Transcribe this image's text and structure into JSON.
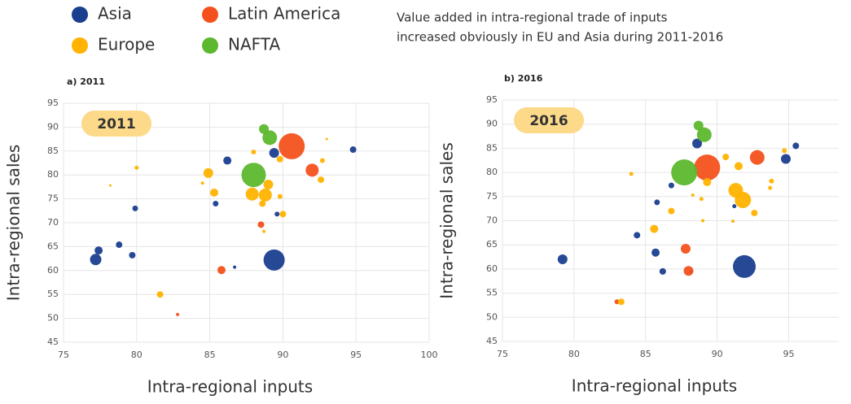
{
  "note": [
    "Value added in intra-regional trade of inputs",
    "increased obviously in EU and Asia during 2011-2016"
  ],
  "chart_data": [
    {
      "type": "scatter",
      "title": "a) 2011",
      "annotation": "2011",
      "x_label": "Intra-regional inputs",
      "y_label": "Intra-regional sales",
      "xlim": [
        75,
        100
      ],
      "ylim": [
        45,
        95
      ],
      "xticks": [
        75,
        80,
        85,
        90,
        95,
        100
      ],
      "yticks": [
        45,
        50,
        55,
        60,
        65,
        70,
        75,
        80,
        85,
        90,
        95
      ],
      "grid": true,
      "series": [
        {
          "name": "Asia",
          "color": "#1b3f8f",
          "x": [
            77.2,
            77.4,
            78.8,
            79.7,
            79.9,
            85.4,
            86.2,
            86.7,
            89.4,
            89.4,
            89.6,
            94.8
          ],
          "values": [
            62.3,
            64.2,
            65.4,
            63.2,
            73,
            74,
            83,
            60.7,
            62.2,
            84.6,
            71.8,
            85.3
          ],
          "sizes": [
            7,
            5,
            4,
            4,
            3.5,
            3.5,
            5,
            2,
            13,
            6,
            3,
            4
          ]
        },
        {
          "name": "Latin America",
          "color": "#f4511e",
          "x": [
            90.6,
            92,
            85.8,
            88.5,
            82.8
          ],
          "values": [
            86,
            81,
            60.1,
            69.6,
            50.8
          ],
          "sizes": [
            16,
            8,
            5,
            4,
            2
          ]
        },
        {
          "name": "Europe",
          "color": "#ffb300",
          "x": [
            81.6,
            80,
            78.2,
            84.9,
            85.3,
            87.9,
            88.8,
            89,
            88.6,
            90,
            89.8,
            92.6,
            92.7,
            89.8,
            88,
            84.5,
            93,
            88.7
          ],
          "values": [
            55,
            81.5,
            77.8,
            80.4,
            76.3,
            76,
            75.8,
            78,
            74,
            71.8,
            75.5,
            79,
            83,
            83.3,
            84.8,
            78.3,
            87.5,
            68.2
          ],
          "sizes": [
            4,
            2.5,
            1.5,
            6,
            5,
            8,
            8,
            6,
            4,
            4,
            3,
            4,
            3,
            4,
            3,
            2,
            1.5,
            2
          ]
        },
        {
          "name": "NAFTA",
          "color": "#5cb82e",
          "x": [
            88,
            88.7,
            89.1
          ],
          "values": [
            80,
            89.6,
            87.8
          ],
          "sizes": [
            15,
            6,
            9
          ]
        }
      ]
    },
    {
      "type": "scatter",
      "title": "b) 2016",
      "annotation": "2016",
      "x_label": "Intra-regional inputs",
      "y_label": "Intra-regional sales",
      "xlim": [
        75,
        98.5
      ],
      "ylim": [
        45,
        95
      ],
      "xticks": [
        75,
        80,
        85,
        90,
        95
      ],
      "yticks": [
        45,
        50,
        55,
        60,
        65,
        70,
        75,
        80,
        85,
        90,
        95
      ],
      "grid": true,
      "series": [
        {
          "color": "#1b3f8f",
          "x": [
            79.2,
            84.4,
            85.7,
            85.8,
            86.2,
            86.8,
            88.6,
            91.2,
            91.9,
            94.8,
            95.5,
            88.2
          ],
          "values": [
            62,
            67,
            63.4,
            73.8,
            59.5,
            77.3,
            86,
            73,
            60.5,
            82.8,
            85.5,
            59.5
          ],
          "sizes": [
            6,
            4,
            5,
            3.5,
            4,
            3.5,
            6,
            2.5,
            14,
            6,
            4,
            2
          ]
        },
        {
          "color": "#f4511e",
          "x": [
            89.3,
            92.8,
            87.8,
            88,
            83
          ],
          "values": [
            81,
            83.1,
            64.2,
            59.6,
            53.2
          ],
          "sizes": [
            16,
            9,
            6,
            6,
            3
          ]
        },
        {
          "color": "#ffb300",
          "x": [
            83.3,
            84,
            85.6,
            86.8,
            89.3,
            90.6,
            91.3,
            91.8,
            91.5,
            92.6,
            93.8,
            94.7,
            93.7,
            88.9,
            89,
            91.1,
            88.3
          ],
          "values": [
            53.2,
            79.7,
            68.3,
            72,
            78,
            83.2,
            76.3,
            74.3,
            81.3,
            71.6,
            78.2,
            84.5,
            76.8,
            74.5,
            70,
            69.9,
            75.3
          ],
          "sizes": [
            4,
            2.5,
            5,
            4,
            5,
            4,
            9,
            10,
            5,
            4,
            3,
            3,
            2.5,
            2.5,
            2,
            2,
            2
          ]
        },
        {
          "color": "#5cb82e",
          "x": [
            87.7,
            88.7,
            89.1
          ],
          "values": [
            80,
            89.7,
            87.8
          ],
          "sizes": [
            16,
            6,
            9
          ]
        }
      ]
    }
  ]
}
